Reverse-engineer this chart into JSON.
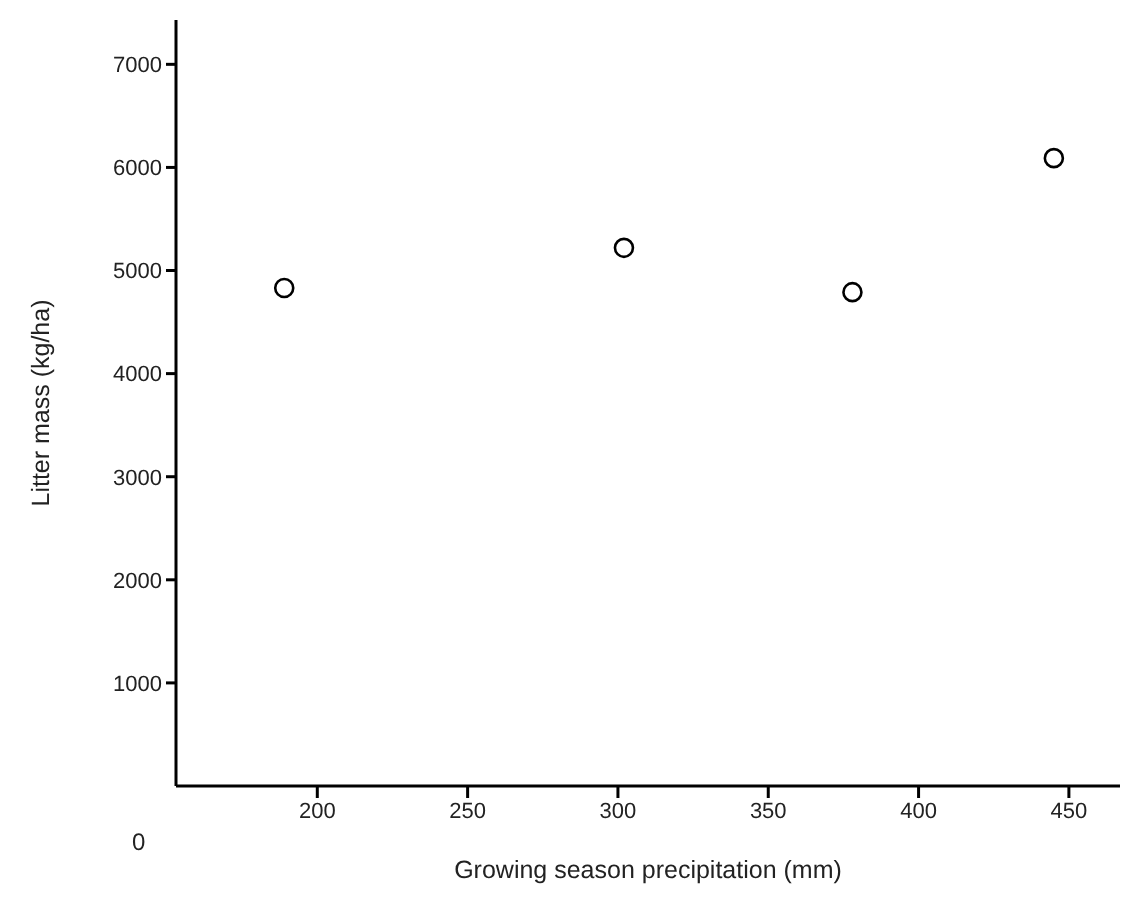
{
  "chart_data": {
    "type": "scatter",
    "xlabel": "Growing season precipitation (mm)",
    "ylabel": "Litter mass (kg/ha)",
    "x": [
      189,
      302,
      378,
      445
    ],
    "values": [
      4830,
      5220,
      4790,
      6090
    ],
    "color": "#000000",
    "marker": "circle",
    "xlim": [
      153,
      467
    ],
    "xticks": [
      200,
      250,
      300,
      350,
      400,
      450
    ],
    "ylim": [
      0,
      7430
    ],
    "yticks": [
      1000,
      2000,
      3000,
      4000,
      5000,
      6000,
      7000
    ],
    "grid": false,
    "annotations": [
      "0"
    ]
  }
}
